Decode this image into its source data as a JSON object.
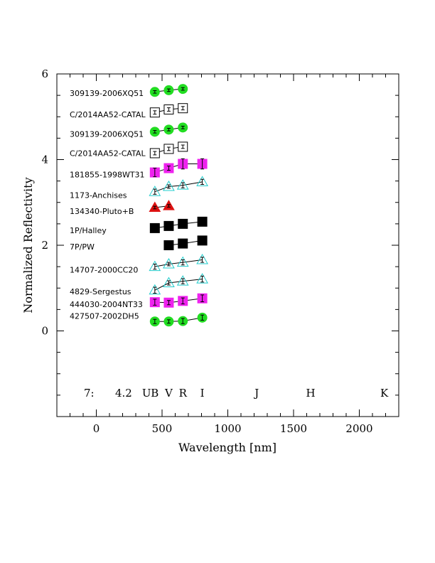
{
  "chart_data": {
    "type": "scatter",
    "xlabel": "Wavelength [nm]",
    "ylabel": "Normalized Reflectivity",
    "xlim": [
      -300,
      2300
    ],
    "ylim": [
      -2,
      6
    ],
    "x_ticks": [
      0,
      500,
      1000,
      1500,
      2000
    ],
    "y_ticks": [
      0,
      2,
      4,
      6
    ],
    "grid": false,
    "footer": {
      "prefix": "7:",
      "value": "4.2",
      "bands": [
        {
          "name": "U",
          "x": 382
        },
        {
          "name": "B",
          "x": 445
        },
        {
          "name": "V",
          "x": 551
        },
        {
          "name": "R",
          "x": 658
        },
        {
          "name": "I",
          "x": 806
        },
        {
          "name": "J",
          "x": 1220
        },
        {
          "name": "H",
          "x": 1630
        },
        {
          "name": "K",
          "x": 2190
        }
      ]
    },
    "series": [
      {
        "name": "309139-2006XQ51",
        "marker": "circle",
        "color": "#22dd22",
        "connect": true,
        "label_y": 5.55,
        "points": [
          {
            "x": 445,
            "y": 5.58,
            "err": 0.03
          },
          {
            "x": 551,
            "y": 5.62,
            "err": 0.03
          },
          {
            "x": 658,
            "y": 5.65,
            "err": 0.03
          }
        ]
      },
      {
        "name": "C/2014AA52-CATAL",
        "marker": "square-open",
        "color": "#000000",
        "connect": true,
        "label_y": 5.05,
        "points": [
          {
            "x": 445,
            "y": 5.1,
            "err": 0.04
          },
          {
            "x": 551,
            "y": 5.17,
            "err": 0.04
          },
          {
            "x": 658,
            "y": 5.2,
            "err": 0.04
          }
        ]
      },
      {
        "name": "309139-2006XQ51",
        "marker": "circle",
        "color": "#22dd22",
        "connect": true,
        "label_y": 4.6,
        "points": [
          {
            "x": 445,
            "y": 4.65,
            "err": 0.03
          },
          {
            "x": 551,
            "y": 4.7,
            "err": 0.03
          },
          {
            "x": 658,
            "y": 4.75,
            "err": 0.03
          }
        ]
      },
      {
        "name": "C/2014AA52-CATAL",
        "marker": "square-open",
        "color": "#000000",
        "connect": true,
        "label_y": 4.15,
        "points": [
          {
            "x": 445,
            "y": 4.15,
            "err": 0.04
          },
          {
            "x": 551,
            "y": 4.25,
            "err": 0.04
          },
          {
            "x": 658,
            "y": 4.3,
            "err": 0.04
          }
        ]
      },
      {
        "name": "181855-1998WT31",
        "marker": "square",
        "color": "#ee22ee",
        "connect": true,
        "label_y": 3.65,
        "points": [
          {
            "x": 445,
            "y": 3.7,
            "err": 0.1
          },
          {
            "x": 551,
            "y": 3.8,
            "err": 0.05
          },
          {
            "x": 658,
            "y": 3.9,
            "err": 0.12
          },
          {
            "x": 806,
            "y": 3.9,
            "err": 0.12
          }
        ]
      },
      {
        "name": "1173-Anchises",
        "marker": "triangle-open",
        "color": "#22cccc",
        "connect": true,
        "label_y": 3.17,
        "points": [
          {
            "x": 445,
            "y": 3.25,
            "err": 0.06
          },
          {
            "x": 551,
            "y": 3.37,
            "err": 0.04
          },
          {
            "x": 658,
            "y": 3.4,
            "err": 0.06
          },
          {
            "x": 806,
            "y": 3.48,
            "err": 0.06
          }
        ]
      },
      {
        "name": "134340-Pluto+B",
        "marker": "triangle",
        "color": "#dd1111",
        "connect": true,
        "label_y": 2.8,
        "points": [
          {
            "x": 445,
            "y": 2.88,
            "err": 0.03
          },
          {
            "x": 551,
            "y": 2.92,
            "err": 0.03
          }
        ]
      },
      {
        "name": "1P/Halley",
        "marker": "square",
        "color": "#000000",
        "connect": true,
        "label_y": 2.35,
        "points": [
          {
            "x": 445,
            "y": 2.4,
            "err": 0.03
          },
          {
            "x": 551,
            "y": 2.45,
            "err": 0.03
          },
          {
            "x": 658,
            "y": 2.5,
            "err": 0.03
          },
          {
            "x": 806,
            "y": 2.55,
            "err": 0.03
          }
        ]
      },
      {
        "name": "7P/PW",
        "marker": "square",
        "color": "#000000",
        "connect": true,
        "label_y": 1.97,
        "points": [
          {
            "x": 551,
            "y": 2.0,
            "err": 0.03
          },
          {
            "x": 658,
            "y": 2.04,
            "err": 0.03
          },
          {
            "x": 806,
            "y": 2.11,
            "err": 0.03
          }
        ]
      },
      {
        "name": "14707-2000CC20",
        "marker": "triangle-open",
        "color": "#22cccc",
        "connect": true,
        "label_y": 1.43,
        "points": [
          {
            "x": 445,
            "y": 1.5,
            "err": 0.06
          },
          {
            "x": 551,
            "y": 1.56,
            "err": 0.04
          },
          {
            "x": 658,
            "y": 1.6,
            "err": 0.06
          },
          {
            "x": 806,
            "y": 1.66,
            "err": 0.06
          }
        ]
      },
      {
        "name": "4829-Sergestus",
        "marker": "triangle-open",
        "color": "#22cccc",
        "connect": true,
        "label_y": 0.92,
        "points": [
          {
            "x": 445,
            "y": 0.95,
            "err": 0.07
          },
          {
            "x": 551,
            "y": 1.12,
            "err": 0.05
          },
          {
            "x": 658,
            "y": 1.16,
            "err": 0.06
          },
          {
            "x": 806,
            "y": 1.21,
            "err": 0.07
          }
        ]
      },
      {
        "name": "444030-2004NT33",
        "marker": "square",
        "color": "#ee22ee",
        "connect": true,
        "label_y": 0.62,
        "points": [
          {
            "x": 445,
            "y": 0.67,
            "err": 0.07
          },
          {
            "x": 551,
            "y": 0.66,
            "err": 0.05
          },
          {
            "x": 658,
            "y": 0.7,
            "err": 0.07
          },
          {
            "x": 806,
            "y": 0.76,
            "err": 0.08
          }
        ]
      },
      {
        "name": "427507-2002DH5",
        "marker": "circle",
        "color": "#22dd22",
        "connect": true,
        "label_y": 0.35,
        "points": [
          {
            "x": 445,
            "y": 0.22,
            "err": 0.05
          },
          {
            "x": 551,
            "y": 0.22,
            "err": 0.04
          },
          {
            "x": 658,
            "y": 0.23,
            "err": 0.06
          },
          {
            "x": 806,
            "y": 0.31,
            "err": 0.06
          }
        ]
      }
    ]
  }
}
